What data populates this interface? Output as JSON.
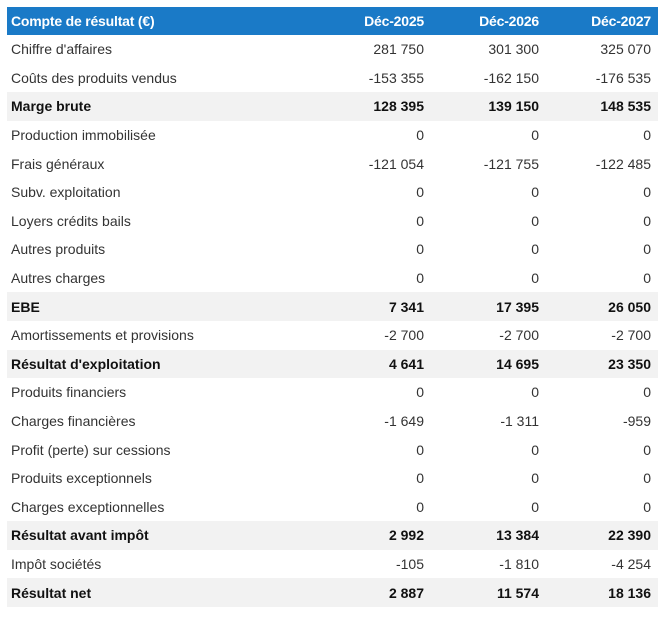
{
  "table": {
    "headers": [
      "Compte de résultat (€)",
      "Déc-2025",
      "Déc-2026",
      "Déc-2027"
    ],
    "rows": [
      {
        "label": "Chiffre d'affaires",
        "values": [
          "281 750",
          "301 300",
          "325 070"
        ],
        "total": false
      },
      {
        "label": "Coûts des produits vendus",
        "values": [
          "-153 355",
          "-162 150",
          "-176 535"
        ],
        "total": false
      },
      {
        "label": "Marge brute",
        "values": [
          "128 395",
          "139 150",
          "148 535"
        ],
        "total": true
      },
      {
        "label": "Production immobilisée",
        "values": [
          "0",
          "0",
          "0"
        ],
        "total": false
      },
      {
        "label": "Frais généraux",
        "values": [
          "-121 054",
          "-121 755",
          "-122 485"
        ],
        "total": false
      },
      {
        "label": "Subv. exploitation",
        "values": [
          "0",
          "0",
          "0"
        ],
        "total": false
      },
      {
        "label": "Loyers crédits bails",
        "values": [
          "0",
          "0",
          "0"
        ],
        "total": false
      },
      {
        "label": "Autres produits",
        "values": [
          "0",
          "0",
          "0"
        ],
        "total": false
      },
      {
        "label": "Autres charges",
        "values": [
          "0",
          "0",
          "0"
        ],
        "total": false
      },
      {
        "label": "EBE",
        "values": [
          "7 341",
          "17 395",
          "26 050"
        ],
        "total": true
      },
      {
        "label": "Amortissements et provisions",
        "values": [
          "-2 700",
          "-2 700",
          "-2 700"
        ],
        "total": false
      },
      {
        "label": "Résultat d'exploitation",
        "values": [
          "4 641",
          "14 695",
          "23 350"
        ],
        "total": true
      },
      {
        "label": "Produits financiers",
        "values": [
          "0",
          "0",
          "0"
        ],
        "total": false
      },
      {
        "label": "Charges financières",
        "values": [
          "-1 649",
          "-1 311",
          "-959"
        ],
        "total": false
      },
      {
        "label": "Profit (perte) sur cessions",
        "values": [
          "0",
          "0",
          "0"
        ],
        "total": false
      },
      {
        "label": "Produits exceptionnels",
        "values": [
          "0",
          "0",
          "0"
        ],
        "total": false
      },
      {
        "label": "Charges exceptionnelles",
        "values": [
          "0",
          "0",
          "0"
        ],
        "total": false
      },
      {
        "label": "Résultat avant impôt",
        "values": [
          "2 992",
          "13 384",
          "22 390"
        ],
        "total": true
      },
      {
        "label": "Impôt sociétés",
        "values": [
          "-105",
          "-1 810",
          "-4 254"
        ],
        "total": false
      },
      {
        "label": "Résultat net",
        "values": [
          "2 887",
          "11 574",
          "18 136"
        ],
        "total": true
      }
    ]
  },
  "colors": {
    "header_bg": "#1a7ac7",
    "header_text": "#ffffff",
    "total_row_bg": "#f2f2f2"
  }
}
